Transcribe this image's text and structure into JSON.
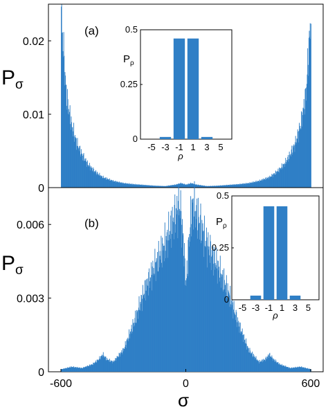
{
  "chart_data": [
    {
      "panel": "(a)",
      "type": "bar",
      "ylabel": "P",
      "ylabel_sub": "σ",
      "xlim": [
        -660,
        660
      ],
      "ylim": [
        0,
        0.025
      ],
      "xticks": [
        "-600",
        "0",
        "600"
      ],
      "yticks": [
        {
          "value": 0,
          "label": "0"
        },
        {
          "value": 0.01,
          "label": "0.01"
        },
        {
          "value": 0.02,
          "label": "0.02"
        }
      ],
      "color": "#2f7fc6",
      "x": [
        -600,
        -575,
        -550,
        -525,
        -500,
        -475,
        -450,
        -425,
        -400,
        -350,
        -300,
        -250,
        -200,
        -150,
        -100,
        -50,
        -25,
        0,
        25,
        50,
        100,
        150,
        200,
        250,
        300,
        350,
        400,
        425,
        450,
        475,
        500,
        525,
        550,
        575,
        600
      ],
      "y": [
        0.0235,
        0.0125,
        0.0085,
        0.006,
        0.0045,
        0.0033,
        0.0025,
        0.0019,
        0.0014,
        0.0009,
        0.0006,
        0.00045,
        0.00035,
        0.00025,
        0.0002,
        0.0004,
        0.0006,
        0.0004,
        0.0006,
        0.0004,
        0.0002,
        0.00025,
        0.00035,
        0.00045,
        0.0006,
        0.0009,
        0.0014,
        0.0019,
        0.0025,
        0.0033,
        0.0045,
        0.006,
        0.0085,
        0.0125,
        0.0235
      ],
      "inset": {
        "type": "bar",
        "ylabel": "P",
        "ylabel_sub": "ρ",
        "xlabel": "ρ",
        "categories": [
          "-5",
          "-3",
          "-1",
          "1",
          "3",
          "5"
        ],
        "values": [
          0,
          0.01,
          0.46,
          0.46,
          0.01,
          0
        ],
        "ylim": [
          0,
          0.5
        ],
        "yticks": [
          {
            "value": 0,
            "label": "0"
          },
          {
            "value": 0.25,
            "label": "0.25"
          },
          {
            "value": 0.5,
            "label": "0.5"
          }
        ]
      }
    },
    {
      "panel": "(b)",
      "type": "bar",
      "ylabel": "P",
      "ylabel_sub": "σ",
      "xlabel": "σ",
      "xlim": [
        -660,
        660
      ],
      "ylim": [
        0,
        0.0075
      ],
      "xticks": [
        "-600",
        "0",
        "600"
      ],
      "yticks": [
        {
          "value": 0,
          "label": "0"
        },
        {
          "value": 0.003,
          "label": "0.003"
        },
        {
          "value": 0.006,
          "label": "0.006"
        }
      ],
      "color": "#2f7fc6",
      "x": [
        -600,
        -550,
        -500,
        -450,
        -420,
        -400,
        -380,
        -350,
        -300,
        -250,
        -200,
        -150,
        -100,
        -60,
        -30,
        -15,
        0,
        15,
        30,
        60,
        100,
        150,
        200,
        250,
        300,
        350,
        380,
        400,
        420,
        450,
        500,
        550,
        600
      ],
      "y": [
        0.0001,
        0.0002,
        0.00015,
        0.0003,
        0.0005,
        0.0007,
        0.0005,
        0.0004,
        0.0009,
        0.002,
        0.0033,
        0.0043,
        0.0052,
        0.0062,
        0.0068,
        0.0055,
        0.0035,
        0.0055,
        0.0068,
        0.0062,
        0.0052,
        0.0043,
        0.0033,
        0.002,
        0.0009,
        0.0004,
        0.0005,
        0.0007,
        0.0005,
        0.0003,
        0.00015,
        0.0002,
        0.0001
      ],
      "inset": {
        "type": "bar",
        "ylabel": "P",
        "ylabel_sub": "ρ",
        "xlabel": "ρ",
        "categories": [
          "-5",
          "-3",
          "-1",
          "1",
          "3",
          "5"
        ],
        "values": [
          0,
          0.02,
          0.45,
          0.45,
          0.02,
          0
        ],
        "ylim": [
          0,
          0.5
        ],
        "yticks": [
          {
            "value": 0,
            "label": "0"
          },
          {
            "value": 0.25,
            "label": "0.25"
          },
          {
            "value": 0.5,
            "label": "0.5"
          }
        ]
      }
    }
  ]
}
